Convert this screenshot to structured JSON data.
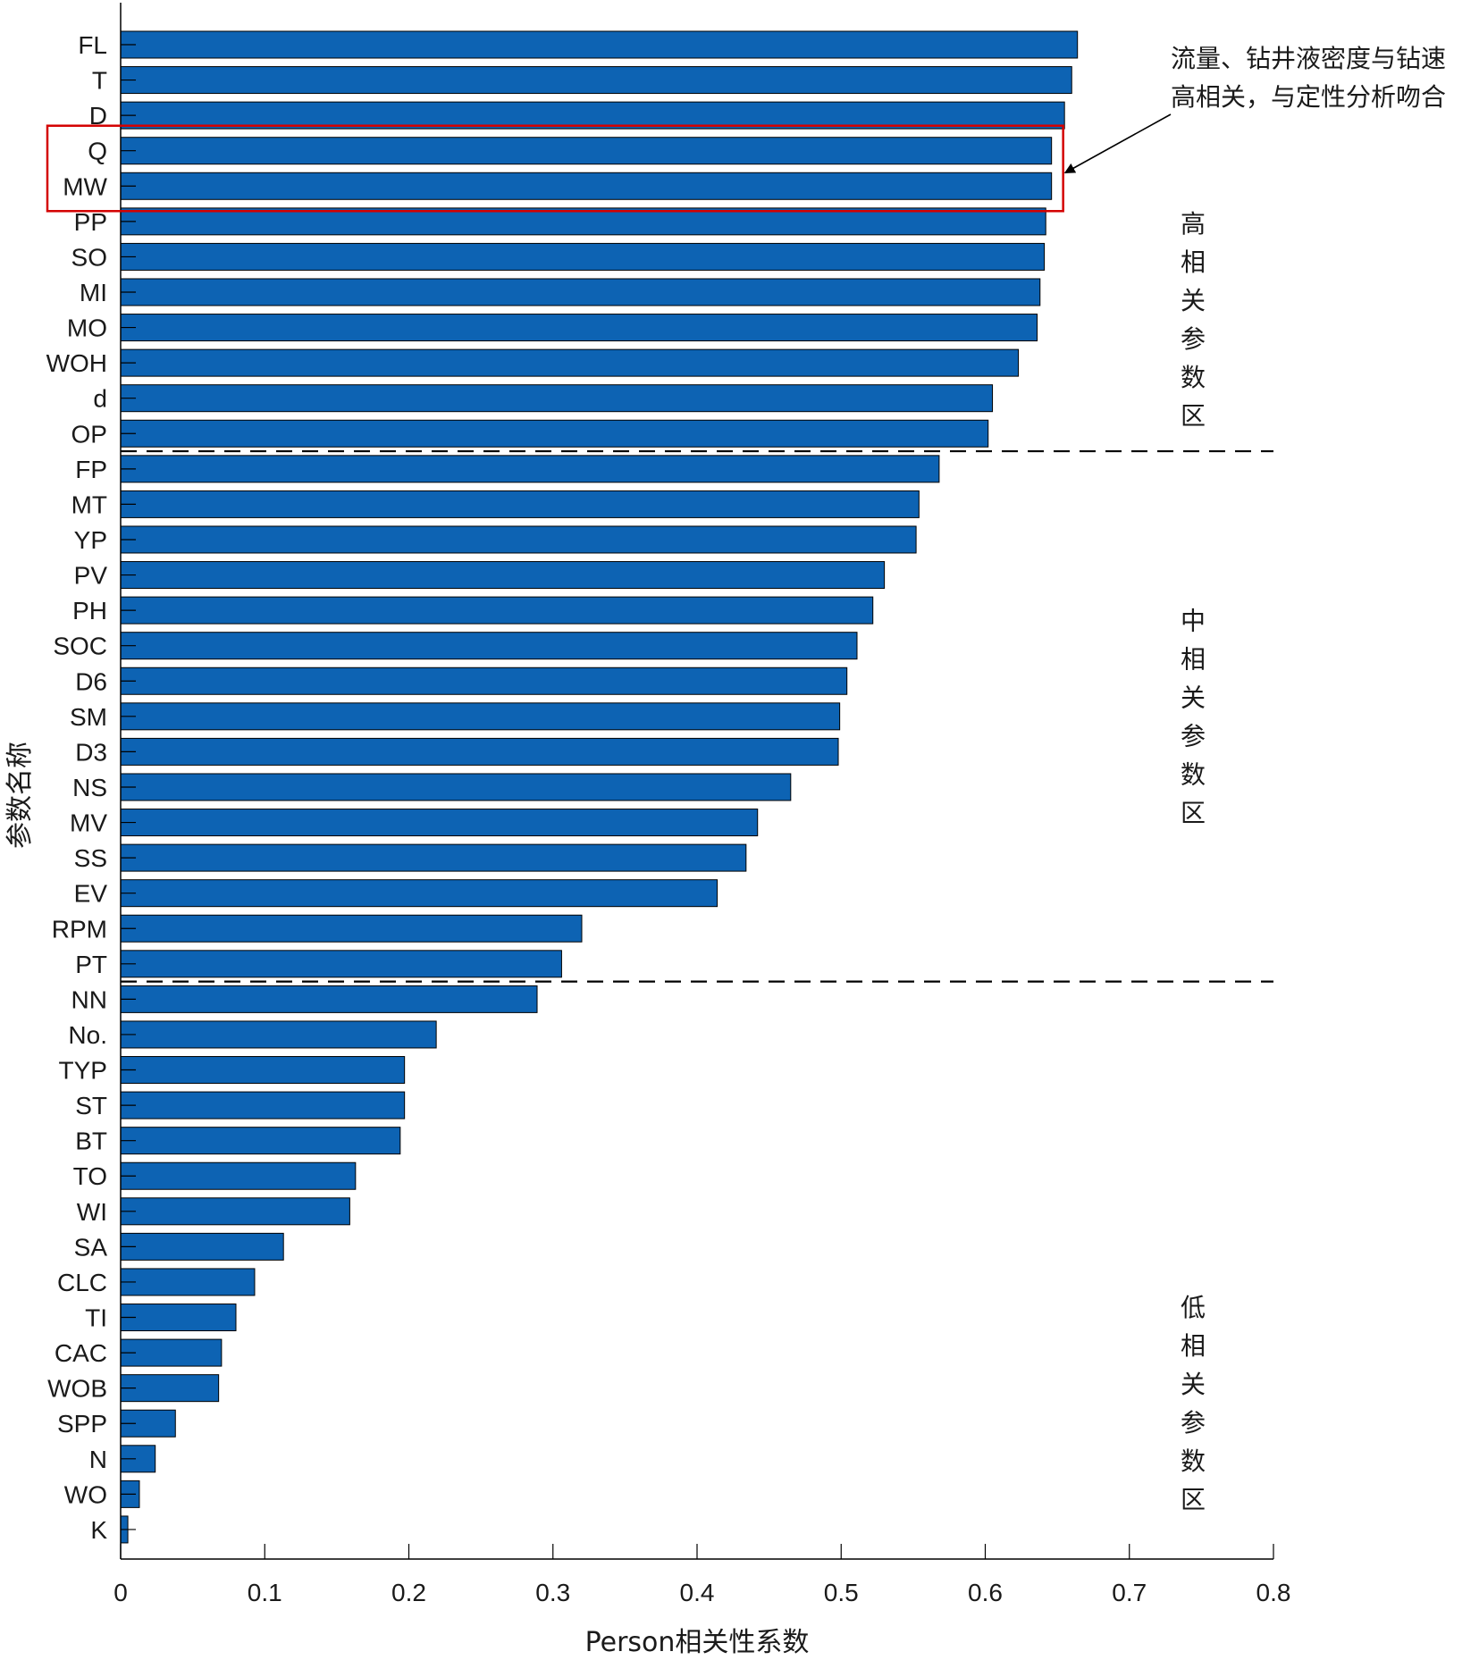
{
  "chart_data": {
    "type": "bar",
    "orientation": "horizontal",
    "categories": [
      "FL",
      "T",
      "D",
      "Q",
      "MW",
      "PP",
      "SO",
      "MI",
      "MO",
      "WOH",
      "d",
      "OP",
      "FP",
      "MT",
      "YP",
      "PV",
      "PH",
      "SOC",
      "D6",
      "SM",
      "D3",
      "NS",
      "MV",
      "SS",
      "EV",
      "RPM",
      "PT",
      "NN",
      "No.",
      "TYP",
      "ST",
      "BT",
      "TO",
      "WI",
      "SA",
      "CLC",
      "TI",
      "CAC",
      "WOB",
      "SPP",
      "N",
      "WO",
      "K"
    ],
    "values": [
      0.664,
      0.66,
      0.655,
      0.646,
      0.646,
      0.642,
      0.641,
      0.638,
      0.636,
      0.623,
      0.605,
      0.602,
      0.568,
      0.554,
      0.552,
      0.53,
      0.522,
      0.511,
      0.504,
      0.499,
      0.498,
      0.465,
      0.442,
      0.434,
      0.414,
      0.32,
      0.306,
      0.289,
      0.219,
      0.197,
      0.197,
      0.194,
      0.163,
      0.159,
      0.113,
      0.093,
      0.08,
      0.07,
      0.068,
      0.038,
      0.024,
      0.013,
      0.005
    ],
    "xlabel": "Person相关性系数",
    "ylabel": "参数名称",
    "xlim": [
      0,
      0.8
    ],
    "xticks": [
      "0",
      "0.1",
      "0.2",
      "0.3",
      "0.4",
      "0.5",
      "0.6",
      "0.7",
      "0.8"
    ],
    "grid": false,
    "bar_color": "#0d63b3",
    "bar_edge_color": "#000000",
    "zone_separators_after": [
      "OP",
      "PT"
    ],
    "zones": [
      {
        "label": "高相关参数区",
        "chars": [
          "高",
          "相",
          "关",
          "参",
          "数",
          "区"
        ]
      },
      {
        "label": "中相关参数区",
        "chars": [
          "中",
          "相",
          "关",
          "参",
          "数",
          "区"
        ]
      },
      {
        "label": "低相关参数区",
        "chars": [
          "低",
          "相",
          "关",
          "参",
          "数",
          "区"
        ]
      }
    ],
    "highlight": {
      "categories": [
        "Q",
        "MW"
      ],
      "color": "#d40000"
    },
    "annotation": {
      "lines": [
        "流量、钻井液密度与钻速",
        "高相关，与定性分析吻合"
      ]
    }
  }
}
